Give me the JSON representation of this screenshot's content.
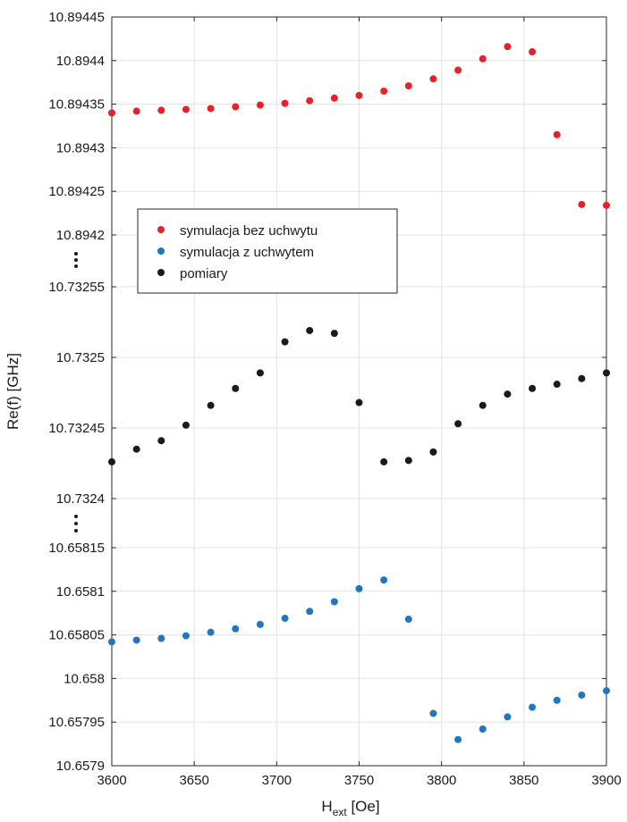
{
  "chart_data": {
    "type": "scatter",
    "title": "",
    "xlabel": "H",
    "xlabel_sub": "ext",
    "xlabel_unit": "[Oe]",
    "ylabel": "Re(f) [GHz]",
    "xlim": [
      3600,
      3900
    ],
    "xticks": [
      "3600",
      "3650",
      "3700",
      "3750",
      "3800",
      "3850",
      "3900"
    ],
    "grid": true,
    "legend_position": "center-left",
    "panels": [
      {
        "ylim": [
          10.8942,
          10.89445
        ],
        "yticks": [
          "10.8942",
          "10.89425",
          "10.8943",
          "10.89435",
          "10.8944",
          "10.89445"
        ]
      },
      {
        "ylim": [
          10.7324,
          10.73255
        ],
        "yticks": [
          "10.7324",
          "10.73245",
          "10.7325",
          "10.73255"
        ]
      },
      {
        "ylim": [
          10.6579,
          10.65815
        ],
        "yticks": [
          "10.6579",
          "10.65795",
          "10.658",
          "10.65805",
          "10.6581",
          "10.65815"
        ]
      }
    ],
    "series": [
      {
        "name": "symulacja bez uchwytu",
        "color": "#e8202a",
        "panel": 0,
        "x": [
          3600,
          3615,
          3630,
          3645,
          3660,
          3675,
          3690,
          3705,
          3720,
          3735,
          3750,
          3765,
          3780,
          3795,
          3810,
          3825,
          3840,
          3855,
          3870,
          3885,
          3900
        ],
        "y": [
          10.89434,
          10.894342,
          10.894343,
          10.894344,
          10.894345,
          10.894347,
          10.894349,
          10.894351,
          10.894354,
          10.894357,
          10.89436,
          10.894365,
          10.894371,
          10.894379,
          10.894389,
          10.894402,
          10.894416,
          10.89441,
          10.894315,
          10.894235,
          10.894234
        ]
      },
      {
        "name": "symulacja z uchwytem",
        "color": "#1f77c0",
        "panel": 2,
        "x": [
          3600,
          3615,
          3630,
          3645,
          3660,
          3675,
          3690,
          3705,
          3720,
          3735,
          3750,
          3765,
          3780,
          3795,
          3810,
          3825,
          3840,
          3855,
          3870,
          3885,
          3900
        ],
        "y": [
          10.658042,
          10.658044,
          10.658046,
          10.658049,
          10.658053,
          10.658057,
          10.658062,
          10.658069,
          10.658077,
          10.658088,
          10.658103,
          10.658113,
          10.658068,
          10.65796,
          10.65793,
          10.657942,
          10.657956,
          10.657967,
          10.657975,
          10.657981,
          10.657986
        ]
      },
      {
        "name": "pomiary",
        "color": "#1a1a1a",
        "panel": 1,
        "x": [
          3600,
          3615,
          3630,
          3645,
          3660,
          3675,
          3690,
          3705,
          3720,
          3735,
          3750,
          3765,
          3780,
          3795,
          3810,
          3825,
          3840,
          3855,
          3870,
          3885,
          3900
        ],
        "y": [
          10.732426,
          10.732435,
          10.732441,
          10.732452,
          10.732466,
          10.732478,
          10.732489,
          10.732511,
          10.732519,
          10.732517,
          10.732468,
          10.732426,
          10.732427,
          10.732433,
          10.732453,
          10.732466,
          10.732474,
          10.732478,
          10.732481,
          10.732485,
          10.732489
        ]
      }
    ]
  }
}
